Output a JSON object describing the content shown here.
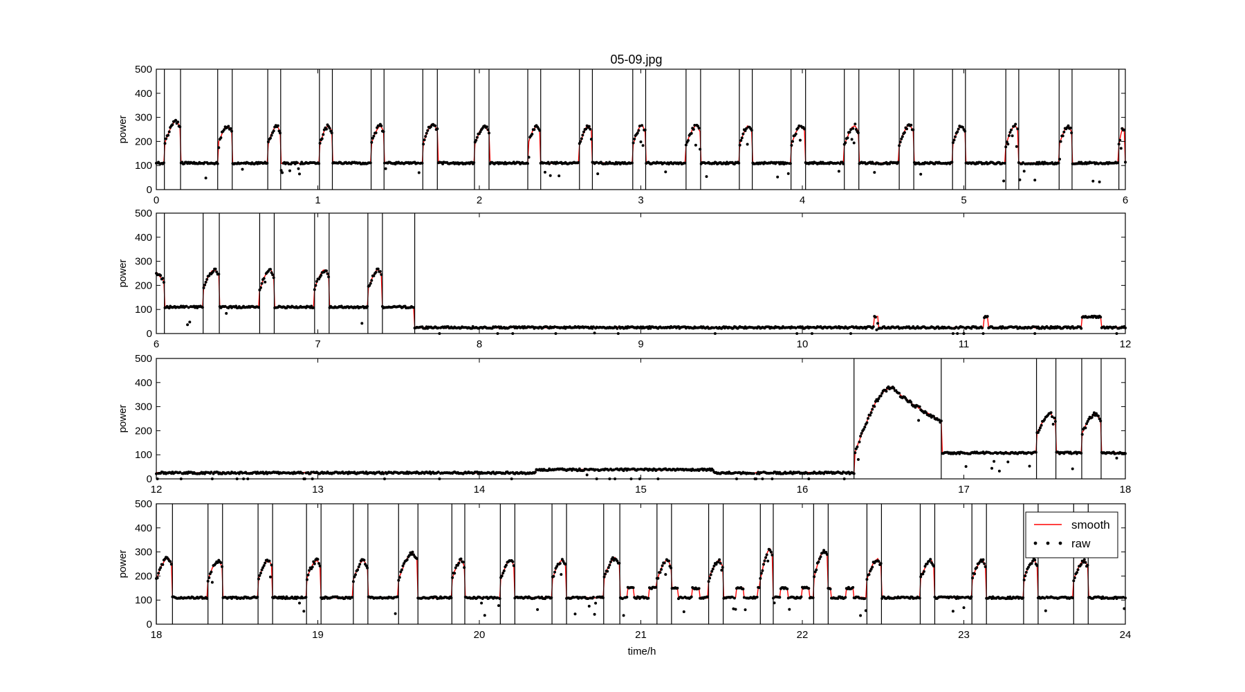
{
  "title": "05-09.jpg",
  "colors": {
    "smooth": "#ff0000",
    "raw": "#000000",
    "boundary": "#000000"
  },
  "legend": {
    "placement": "top-right",
    "smooth_label": "smooth",
    "raw_label": "raw"
  },
  "chart_data": [
    {
      "type": "line",
      "title": "05-09.jpg",
      "xlabel": "",
      "ylabel": "power",
      "xlim": [
        0,
        6
      ],
      "ylim": [
        0,
        500
      ],
      "x_ticks": [
        0,
        1,
        2,
        3,
        4,
        5,
        6
      ],
      "y_ticks": [
        0,
        100,
        200,
        300,
        400,
        500
      ],
      "baseline": 110,
      "cycles": [
        {
          "start": 0.05,
          "end": 0.15,
          "peak": 285
        },
        {
          "start": 0.38,
          "end": 0.47,
          "peak": 265
        },
        {
          "start": 0.69,
          "end": 0.77,
          "peak": 265
        },
        {
          "start": 1.01,
          "end": 1.09,
          "peak": 265
        },
        {
          "start": 1.33,
          "end": 1.41,
          "peak": 265
        },
        {
          "start": 1.65,
          "end": 1.74,
          "peak": 275
        },
        {
          "start": 1.97,
          "end": 2.06,
          "peak": 265
        },
        {
          "start": 2.3,
          "end": 2.38,
          "peak": 265
        },
        {
          "start": 2.62,
          "end": 2.7,
          "peak": 265
        },
        {
          "start": 2.95,
          "end": 3.03,
          "peak": 265
        },
        {
          "start": 3.28,
          "end": 3.37,
          "peak": 265
        },
        {
          "start": 3.61,
          "end": 3.69,
          "peak": 265
        },
        {
          "start": 3.93,
          "end": 4.02,
          "peak": 265
        },
        {
          "start": 4.26,
          "end": 4.35,
          "peak": 265
        },
        {
          "start": 4.6,
          "end": 4.69,
          "peak": 270
        },
        {
          "start": 4.93,
          "end": 5.01,
          "peak": 265
        },
        {
          "start": 5.26,
          "end": 5.34,
          "peak": 265
        },
        {
          "start": 5.59,
          "end": 5.67,
          "peak": 265
        },
        {
          "start": 5.96,
          "end": 6.0,
          "peak": 255
        }
      ],
      "series": [
        {
          "name": "smooth"
        },
        {
          "name": "raw"
        }
      ]
    },
    {
      "type": "line",
      "title": "",
      "xlabel": "",
      "ylabel": "power",
      "xlim": [
        6,
        12
      ],
      "ylim": [
        0,
        500
      ],
      "x_ticks": [
        6,
        7,
        8,
        9,
        10,
        11,
        12
      ],
      "y_ticks": [
        0,
        100,
        200,
        300,
        400,
        500
      ],
      "baseline": 110,
      "baseline_until": 7.6,
      "idle_level": 25,
      "cycles": [
        {
          "start": 6.0,
          "end": 6.05,
          "peak": 255,
          "open_start": true
        },
        {
          "start": 6.29,
          "end": 6.39,
          "peak": 265
        },
        {
          "start": 6.64,
          "end": 6.73,
          "peak": 265
        },
        {
          "start": 6.98,
          "end": 7.07,
          "peak": 265
        },
        {
          "start": 7.31,
          "end": 7.4,
          "peak": 265
        }
      ],
      "boundaries_extra": [
        7.6
      ],
      "blips": [
        {
          "start": 10.44,
          "end": 10.47,
          "level": 70
        },
        {
          "start": 11.12,
          "end": 11.15,
          "level": 70
        },
        {
          "start": 11.73,
          "end": 11.85,
          "level": 70
        }
      ],
      "series": [
        {
          "name": "smooth"
        },
        {
          "name": "raw"
        }
      ]
    },
    {
      "type": "line",
      "title": "",
      "xlabel": "",
      "ylabel": "power",
      "xlim": [
        12,
        18
      ],
      "ylim": [
        0,
        500
      ],
      "x_ticks": [
        12,
        13,
        14,
        15,
        16,
        17,
        18
      ],
      "y_ticks": [
        0,
        100,
        200,
        300,
        400,
        500
      ],
      "idle_segments": [
        {
          "start": 12.0,
          "end": 14.35,
          "level": 25
        },
        {
          "start": 14.35,
          "end": 15.45,
          "level": 38
        },
        {
          "start": 15.45,
          "end": 16.32,
          "level": 25
        }
      ],
      "big_cycle": {
        "start": 16.32,
        "end": 16.86,
        "peak": 380,
        "peak_at": 16.56,
        "end_level": 240
      },
      "baseline": 108,
      "baseline_from": 16.86,
      "cycles": [
        {
          "start": 17.45,
          "end": 17.57,
          "peak": 270
        },
        {
          "start": 17.73,
          "end": 17.85,
          "peak": 270
        }
      ],
      "series": [
        {
          "name": "smooth"
        },
        {
          "name": "raw"
        }
      ]
    },
    {
      "type": "line",
      "title": "",
      "xlabel": "time/h",
      "ylabel": "power",
      "xlim": [
        18,
        24
      ],
      "ylim": [
        0,
        500
      ],
      "x_ticks": [
        18,
        19,
        20,
        21,
        22,
        23,
        24
      ],
      "y_ticks": [
        0,
        100,
        200,
        300,
        400,
        500
      ],
      "baseline": 110,
      "cycles": [
        {
          "start": 18.0,
          "end": 18.1,
          "peak": 275
        },
        {
          "start": 18.32,
          "end": 18.41,
          "peak": 265
        },
        {
          "start": 18.63,
          "end": 18.72,
          "peak": 265
        },
        {
          "start": 18.93,
          "end": 19.02,
          "peak": 265
        },
        {
          "start": 19.22,
          "end": 19.31,
          "peak": 265
        },
        {
          "start": 19.5,
          "end": 19.62,
          "peak": 295
        },
        {
          "start": 19.83,
          "end": 19.91,
          "peak": 265
        },
        {
          "start": 20.13,
          "end": 20.22,
          "peak": 265
        },
        {
          "start": 20.45,
          "end": 20.54,
          "peak": 265
        },
        {
          "start": 20.77,
          "end": 20.87,
          "peak": 275
        },
        {
          "start": 21.1,
          "end": 21.19,
          "peak": 265
        },
        {
          "start": 21.42,
          "end": 21.51,
          "peak": 265
        },
        {
          "start": 21.74,
          "end": 21.82,
          "peak": 310
        },
        {
          "start": 22.07,
          "end": 22.16,
          "peak": 305
        },
        {
          "start": 22.4,
          "end": 22.49,
          "peak": 270
        },
        {
          "start": 22.73,
          "end": 22.82,
          "peak": 265
        },
        {
          "start": 23.05,
          "end": 23.14,
          "peak": 265
        },
        {
          "start": 23.37,
          "end": 23.46,
          "peak": 265
        },
        {
          "start": 23.68,
          "end": 23.77,
          "peak": 265
        }
      ],
      "busy_ranges": [
        [
          20.87,
          21.74
        ],
        [
          21.82,
          22.4
        ]
      ],
      "series": [
        {
          "name": "smooth"
        },
        {
          "name": "raw"
        }
      ]
    }
  ]
}
